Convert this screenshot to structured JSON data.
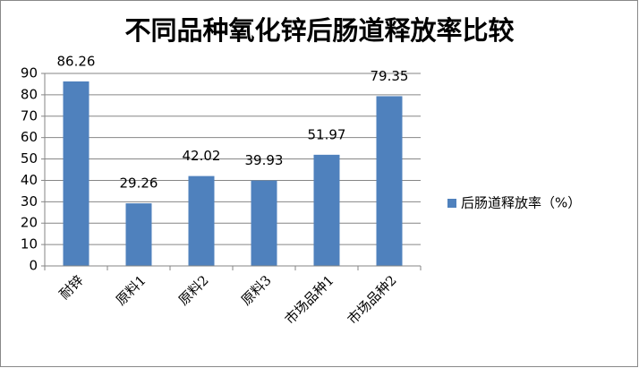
{
  "chart_data": {
    "type": "bar",
    "title": "不同品种氧化锌后肠道释放率比较",
    "categories": [
      "耐锌",
      "原料1",
      "原料2",
      "原料3",
      "市场品种1",
      "市场品种2"
    ],
    "series": [
      {
        "name": "后肠道释放率（%）",
        "color": "#4f81bd",
        "values": [
          86.26,
          29.26,
          42.02,
          39.93,
          51.97,
          79.35
        ]
      }
    ],
    "ylim": [
      0,
      90
    ],
    "yticks": [
      0,
      10,
      20,
      30,
      40,
      50,
      60,
      70,
      80,
      90
    ],
    "grid": true,
    "legend": "right"
  }
}
